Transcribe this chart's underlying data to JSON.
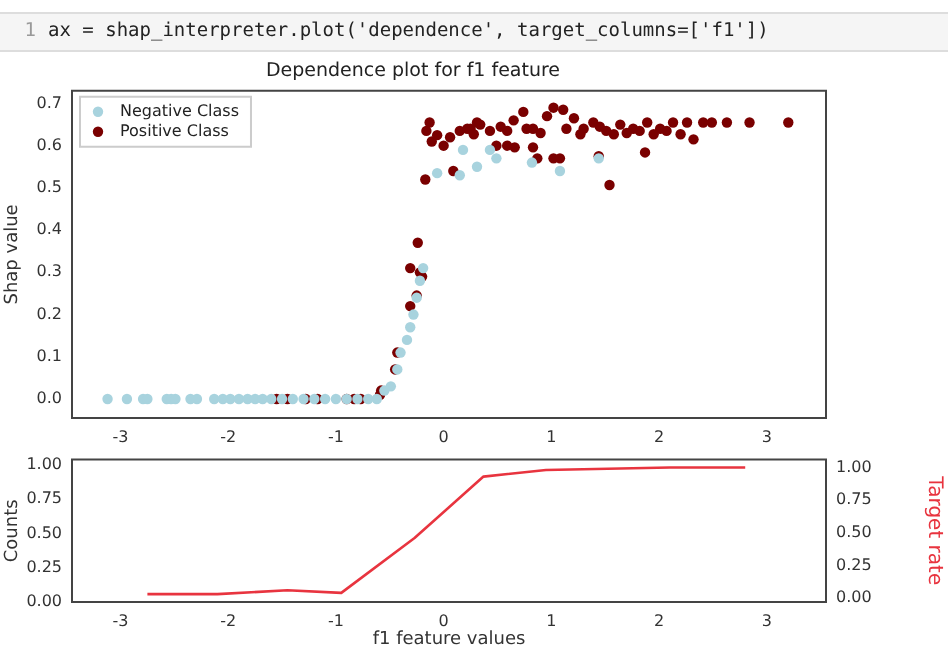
{
  "chart_data": [
    {
      "type": "scatter",
      "title": "Dependence plot for f1 feature",
      "ylabel": "Shap value",
      "annotations": [
        "1",
        "ax = shap_interpreter.plot('dependence', target_columns=['f1'])"
      ],
      "xlim": [
        -3.45,
        3.55
      ],
      "xticks": [
        -3,
        -2,
        -1,
        0,
        1,
        2,
        3
      ],
      "ylim": [
        -0.045,
        0.73
      ],
      "yticks": [
        {
          "value": 0,
          "label": "0.0"
        },
        0.1,
        0.2,
        0.3,
        0.4,
        0.5,
        0.6,
        0.7
      ],
      "grid": false,
      "legend": "top left",
      "marker": "circle",
      "series": [
        {
          "name": "Negative Class",
          "color": "#a8d3de",
          "x": [
            -3.12,
            -2.94,
            -2.79,
            -2.75,
            -2.57,
            -2.53,
            -2.49,
            -2.35,
            -2.29,
            -2.13,
            -2.05,
            -1.98,
            -1.9,
            -1.82,
            -1.75,
            -1.68,
            -1.6,
            -1.5,
            -1.4,
            -1.3,
            -1.2,
            -1.1,
            -1.0,
            -0.9,
            -0.8,
            -0.7,
            -0.62,
            -0.55,
            -0.49,
            -0.43,
            -0.4,
            -0.34,
            -0.31,
            -0.28,
            -0.25,
            -0.22,
            -0.19,
            -0.06,
            0.18,
            0.31,
            0.43,
            0.49,
            0.82,
            1.08,
            1.44,
            0.15
          ],
          "values": [
            0,
            0,
            0,
            0,
            0,
            0,
            0,
            0,
            0,
            0,
            0,
            0,
            0,
            0,
            0,
            0,
            0,
            0,
            0,
            0,
            0,
            0,
            0,
            0,
            0,
            0,
            0,
            0.02,
            0.03,
            0.07,
            0.11,
            0.14,
            0.17,
            0.2,
            0.24,
            0.28,
            0.31,
            0.535,
            0.59,
            0.55,
            0.59,
            0.57,
            0.56,
            0.54,
            0.57,
            0.53
          ]
        },
        {
          "name": "Positive Class",
          "color": "#7a0000",
          "x": [
            -1.55,
            -1.45,
            -1.28,
            -1.17,
            -0.9,
            -0.83,
            -0.77,
            -0.59,
            -0.58,
            -0.45,
            -0.43,
            -0.31,
            -0.31,
            -0.25,
            -0.24,
            -0.22,
            -0.2,
            -0.17,
            0.09,
            -0.16,
            -0.13,
            -0.11,
            -0.06,
            0.0,
            0.06,
            0.15,
            0.25,
            0.31,
            0.22,
            0.34,
            0.53,
            0.65,
            0.74,
            0.83,
            0.96,
            1.02,
            1.11,
            1.21,
            1.3,
            1.39,
            1.51,
            1.64,
            1.76,
            1.89,
            2.01,
            2.13,
            2.26,
            2.32,
            2.41,
            2.49,
            2.63,
            2.84,
            3.2,
            0.49,
            0.59,
            0.66,
            0.83,
            0.87,
            1.02,
            1.08,
            1.44,
            1.54,
            1.87,
            0.28,
            0.43,
            0.59,
            0.77,
            0.9,
            1.14,
            1.27,
            1.45,
            1.58,
            1.7,
            1.82,
            1.95,
            2.07,
            2.2
          ],
          "values": [
            0,
            0,
            0,
            0,
            0,
            0,
            0,
            0.01,
            0.02,
            0.07,
            0.11,
            0.22,
            0.31,
            0.245,
            0.37,
            0.3,
            0.29,
            0.52,
            0.54,
            0.635,
            0.655,
            0.61,
            0.625,
            0.6,
            0.62,
            0.635,
            0.64,
            0.655,
            0.64,
            0.65,
            0.645,
            0.66,
            0.68,
            0.64,
            0.67,
            0.69,
            0.685,
            0.665,
            0.64,
            0.655,
            0.635,
            0.65,
            0.64,
            0.655,
            0.64,
            0.655,
            0.655,
            0.615,
            0.655,
            0.655,
            0.655,
            0.655,
            0.655,
            0.6,
            0.6,
            0.596,
            0.596,
            0.57,
            0.57,
            0.57,
            0.575,
            0.507,
            0.584,
            0.627,
            0.635,
            0.635,
            0.64,
            0.63,
            0.64,
            0.627,
            0.645,
            0.627,
            0.63,
            0.635,
            0.627,
            0.635,
            0.627
          ]
        }
      ]
    },
    {
      "type": "line",
      "xlabel": "f1 feature values",
      "ylabel": "Counts",
      "y2label": "Target rate",
      "xlim": [
        -3.45,
        3.55
      ],
      "xticks": [
        -3,
        -2,
        -1,
        0,
        1,
        2,
        3
      ],
      "ylim": [
        0,
        1.04
      ],
      "yticks": [
        {
          "value": 0,
          "label": "0.00"
        },
        0.25,
        {
          "value": 0.5,
          "label": "0.50"
        },
        0.75,
        {
          "value": 1,
          "label": "1.00"
        }
      ],
      "y2lim": [
        -0.03,
        1.06
      ],
      "y2ticks": [
        {
          "value": 0,
          "label": "0.00"
        },
        0.25,
        {
          "value": 0.5,
          "label": "0.50"
        },
        0.75,
        {
          "value": 1,
          "label": "1.00"
        }
      ],
      "grid": false,
      "marker": "none",
      "series": [
        {
          "color": "#e8343f",
          "axis": "y2",
          "x": [
            -2.75,
            -2.1,
            -1.45,
            -0.95,
            -0.27,
            0.37,
            0.95,
            2.1,
            2.8
          ],
          "values": [
            0.03,
            0.03,
            0.06,
            0.04,
            0.46,
            0.93,
            0.98,
            1.0,
            1.0
          ]
        }
      ]
    }
  ]
}
